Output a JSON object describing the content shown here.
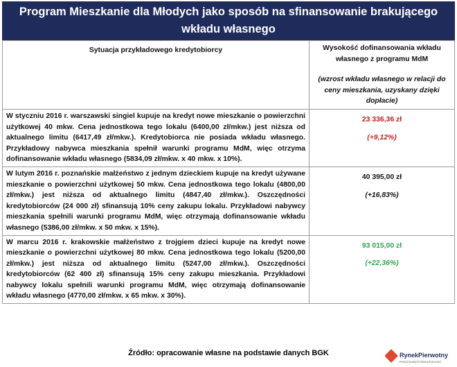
{
  "header": {
    "title": "Program Mieszkanie dla Młodych jako sposób na sfinansowanie brakującego wkładu własnego"
  },
  "table": {
    "columns": [
      "Sytuacja przykładowego kredytobiorcy",
      "Wysokość dofinansowania wkładu własnego z programu MdM"
    ],
    "column_note": "(wzrost wkładu własnego w relacji do ceny mieszkania, uzyskany dzięki dopłacie)",
    "rows": [
      [
        "W styczniu 2016 r. warszawski singiel kupuje na kredyt nowe mieszkanie o powierzchni użytkowej 40 mkw. Cena jednostkowa tego lokalu (6400,00 zł/mkw.) jest niższa od aktualnego limitu (6417,49 zł/mkw.). Kredytobiorca nie posiada wkładu własnego. Przykładowy nabywca mieszkania spełnił warunki programu MdM, więc otrzyma dofinansowanie wkładu własnego (5834,09 zł/mkw. x 40 mkw. x 10%).",
        "23 336,36 zł",
        "(+9,12%)"
      ],
      [
        "W lutym 2016 r. poznańskie małżeństwo z jednym dzieckiem kupuje na kredyt używane mieszkanie o powierzchni użytkowej 50 mkw. Cena jednostkowa tego lokalu (4800,00 zł/mkw.) jest niższa od aktualnego limitu (4847,40 zł/mkw.). Oszczędności kredytobiorców (24 000 zł) sfinansują 10% ceny zakupu lokalu. Przykładowi nabywcy mieszkania spełnili warunki programu MdM, więc otrzymają dofinansowanie wkładu własnego (5386,00 zł/mkw. x 50 mkw. x 15%).",
        "40 395,00 zł",
        "(+16,83%)"
      ],
      [
        "W marcu 2016 r. krakowskie małżeństwo z trojgiem dzieci kupuje na kredyt nowe mieszkanie o powierzchni użytkowej 80 mkw. Cena jednostkowa tego lokalu (5200,00 zł/mkw.) jest niższa od aktualnego limitu (5247,00 zł/mkw.). Oszczędności kredytobiorców (62 400 zł) sfinansują 15% ceny zakupu mieszkania. Przykładowi nabywcy lokalu spełnili warunki programu MdM, więc otrzymają dofinansowanie wkładu własnego (4770,00 zł/mkw. x 65 mkw. x 30%).",
        "93 015,00 zł",
        "(+22,36%)"
      ]
    ]
  },
  "footer": {
    "source": "Źródło: opracowanie własne na podstawie danych BGK",
    "logo": "RynekPierwotny",
    "logo_sub": "Portal Nowych Nieruchomości"
  }
}
